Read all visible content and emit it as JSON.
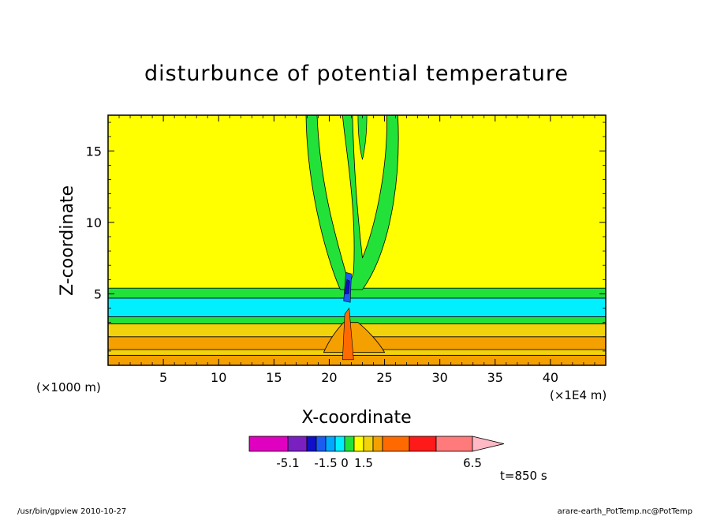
{
  "chart_data": {
    "type": "heatmap",
    "title": "disturbunce of potential temperature",
    "xlabel": "X-coordinate",
    "ylabel": "Z-coordinate",
    "x_scale_note": "(×1000 m)",
    "x_scale_note_right": "(×1E4 m)",
    "xlim": [
      0,
      45
    ],
    "ylim": [
      0,
      17.5
    ],
    "x_ticks": [
      5,
      10,
      15,
      20,
      25,
      30,
      35,
      40
    ],
    "x_tick_labels": [
      "5",
      "10",
      "15",
      "20",
      "25",
      "30",
      "35",
      "40"
    ],
    "y_ticks": [
      5,
      10,
      15
    ],
    "y_tick_labels": [
      "5",
      "10",
      "15"
    ],
    "grid": false,
    "colorbar": {
      "colors": [
        "#e000c0",
        "#7a1fc0",
        "#1010c8",
        "#1a5cf0",
        "#00a8ff",
        "#00f0ff",
        "#22e23a",
        "#ffff00",
        "#f2d20a",
        "#f4a000",
        "#ff6a00",
        "#ff1a1a",
        "#ff7a7a",
        "#ffb8c4"
      ],
      "labels": [
        "-5.1",
        "-1.5",
        "0",
        "1.5",
        "6.5"
      ]
    },
    "background_value_color": "#ffff00",
    "bands": [
      {
        "z_range": [
          0,
          0.7
        ],
        "color": "#f4a000"
      },
      {
        "z_range": [
          0.7,
          1.1
        ],
        "color": "#f2d20a"
      },
      {
        "z_range": [
          1.1,
          2.0
        ],
        "color": "#f4a000"
      },
      {
        "z_range": [
          2.0,
          2.9
        ],
        "color": "#f2d20a"
      },
      {
        "z_range": [
          2.9,
          3.4
        ],
        "color": "#22e23a"
      },
      {
        "z_range": [
          3.4,
          4.7
        ],
        "color": "#00f0ff"
      },
      {
        "z_range": [
          4.7,
          5.4
        ],
        "color": "#22e23a"
      }
    ],
    "annotation": "t=850 s"
  },
  "footer": {
    "left": "/usr/bin/gpview   2010-10-27",
    "right": "arare-earth_PotTemp.nc@PotTemp"
  }
}
